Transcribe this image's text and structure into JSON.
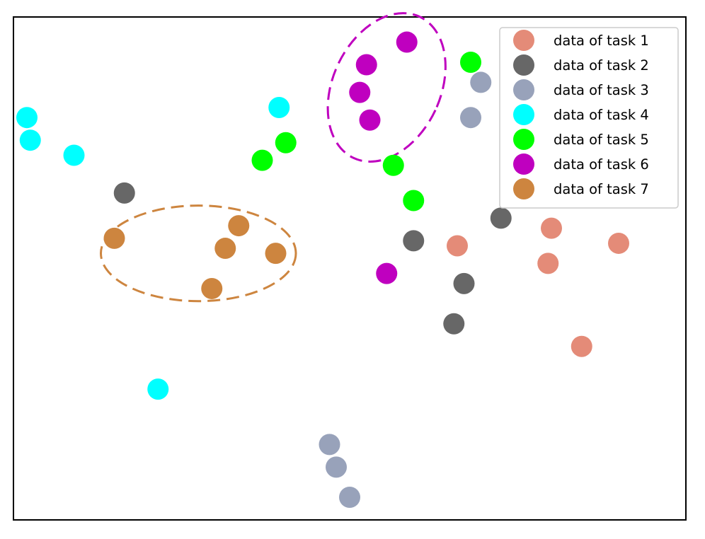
{
  "chart_data": {
    "type": "scatter",
    "xlim": [
      0,
      100
    ],
    "ylim": [
      0,
      100
    ],
    "grid": false,
    "axes_ticks": false,
    "legend": {
      "placement": "top-right"
    },
    "series": [
      {
        "name": "data of task 1",
        "color": "#E48B78",
        "points": [
          [
            66.0,
            54.5
          ],
          [
            80.0,
            58.0
          ],
          [
            90.0,
            55.0
          ],
          [
            79.5,
            51.0
          ],
          [
            84.5,
            34.5
          ]
        ]
      },
      {
        "name": "data of task 2",
        "color": "#676767",
        "points": [
          [
            16.5,
            65.0
          ],
          [
            59.5,
            55.5
          ],
          [
            72.5,
            60.0
          ],
          [
            67.0,
            47.0
          ],
          [
            65.5,
            39.0
          ]
        ]
      },
      {
        "name": "data of task 3",
        "color": "#98A2BA",
        "points": [
          [
            69.5,
            87.0
          ],
          [
            68.0,
            80.0
          ],
          [
            47.0,
            15.0
          ],
          [
            48.0,
            10.5
          ],
          [
            50.0,
            4.5
          ]
        ]
      },
      {
        "name": "data of task 4",
        "color": "#00FFFF",
        "points": [
          [
            2.0,
            80.0
          ],
          [
            2.5,
            75.5
          ],
          [
            9.0,
            72.5
          ],
          [
            39.5,
            82.0
          ],
          [
            21.5,
            26.0
          ]
        ]
      },
      {
        "name": "data of task 5",
        "color": "#00FF00",
        "points": [
          [
            68.0,
            91.0
          ],
          [
            40.5,
            75.0
          ],
          [
            37.0,
            71.5
          ],
          [
            56.5,
            70.5
          ],
          [
            59.5,
            63.5
          ]
        ]
      },
      {
        "name": "data of task 6",
        "color": "#BF00BF",
        "points": [
          [
            58.5,
            95.0
          ],
          [
            52.5,
            90.5
          ],
          [
            51.5,
            85.0
          ],
          [
            53.0,
            79.5
          ],
          [
            55.5,
            49.0
          ]
        ]
      },
      {
        "name": "data of task 7",
        "color": "#CD853F",
        "points": [
          [
            15.0,
            56.0
          ],
          [
            33.5,
            58.5
          ],
          [
            31.5,
            54.0
          ],
          [
            39.0,
            53.0
          ],
          [
            29.5,
            46.0
          ]
        ]
      }
    ],
    "annotations": [
      {
        "shape": "dashed-ellipse",
        "color": "#BF00BF",
        "cx": 55.5,
        "cy": 86.0,
        "rx": 8.0,
        "ry": 15.5,
        "rotation_deg": 25
      },
      {
        "shape": "dashed-ellipse",
        "color": "#CD853F",
        "cx": 27.5,
        "cy": 53.0,
        "rx": 14.5,
        "ry": 9.5,
        "rotation_deg": 0
      }
    ]
  }
}
